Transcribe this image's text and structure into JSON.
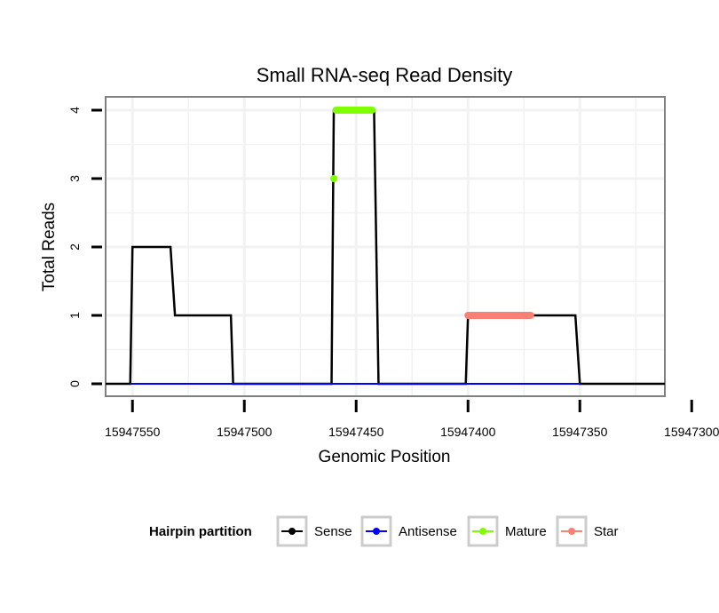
{
  "chart_data": {
    "type": "line",
    "title": "Small RNA-seq Read Density",
    "xlabel": "Genomic Position",
    "ylabel": "Total Reads",
    "x_reversed": true,
    "xlim": [
      15947562,
      15947312
    ],
    "ylim": [
      0,
      4
    ],
    "x_ticks": [
      15947550,
      15947500,
      15947450,
      15947400,
      15947350,
      15947300
    ],
    "y_ticks": [
      0,
      1,
      2,
      3,
      4
    ],
    "grid": true,
    "legend_position": "bottom",
    "legend": {
      "title": "Hairpin partition",
      "entries": [
        {
          "label": "Sense",
          "color": "#000000"
        },
        {
          "label": "Antisense",
          "color": "#0000ff"
        },
        {
          "label": "Mature",
          "color": "#7fff00"
        },
        {
          "label": "Star",
          "color": "#fa8072"
        }
      ]
    },
    "series": [
      {
        "name": "Sense",
        "color": "#000000",
        "points": [
          [
            15947562,
            0
          ],
          [
            15947551,
            0
          ],
          [
            15947550,
            2
          ],
          [
            15947533,
            2
          ],
          [
            15947531,
            1
          ],
          [
            15947506,
            1
          ],
          [
            15947505,
            0
          ],
          [
            15947461,
            0
          ],
          [
            15947460,
            4
          ],
          [
            15947442,
            4
          ],
          [
            15947440,
            0
          ],
          [
            15947401,
            0
          ],
          [
            15947400,
            1
          ],
          [
            15947352,
            1
          ],
          [
            15947350,
            0
          ],
          [
            15947312,
            0
          ]
        ]
      },
      {
        "name": "Antisense",
        "color": "#0000ff",
        "points": [
          [
            15947551,
            0
          ],
          [
            15947350,
            0
          ]
        ]
      },
      {
        "name": "Mature",
        "color": "#7fff00",
        "points": [
          [
            15947460,
            3
          ],
          [
            15947459,
            4
          ],
          [
            15947443,
            4
          ]
        ]
      },
      {
        "name": "Star",
        "color": "#fa8072",
        "points": [
          [
            15947400,
            1
          ],
          [
            15947372,
            1
          ]
        ]
      }
    ]
  }
}
